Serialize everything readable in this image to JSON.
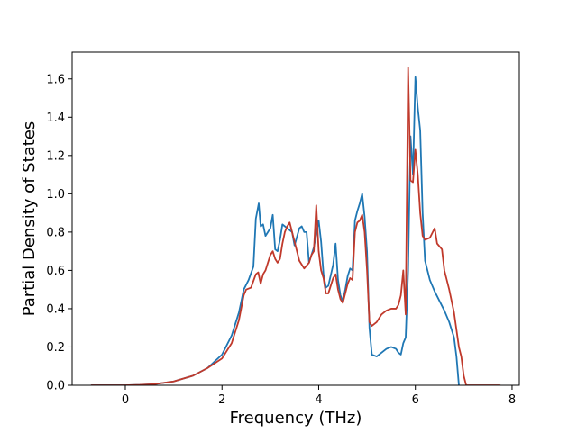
{
  "chart_data": {
    "type": "line",
    "title": "",
    "xlabel": "Frequency (THz)",
    "ylabel": "Partial Density of States",
    "xlim": [
      -1.1,
      8.15
    ],
    "ylim": [
      0.0,
      1.74
    ],
    "xticks": [
      0,
      2,
      4,
      6,
      8
    ],
    "xtick_labels": [
      "0",
      "2",
      "4",
      "6",
      "8"
    ],
    "yticks": [
      0.0,
      0.2,
      0.4,
      0.6,
      0.8,
      1.0,
      1.2,
      1.4,
      1.6
    ],
    "ytick_labels": [
      "0.0",
      "0.2",
      "0.4",
      "0.6",
      "0.8",
      "1.0",
      "1.2",
      "1.4",
      "1.6"
    ],
    "grid": false,
    "legend": "none",
    "series": [
      {
        "color": "#1f77b4",
        "points": [
          [
            -0.7,
            0.0
          ],
          [
            0.0,
            0.0
          ],
          [
            0.3,
            0.002
          ],
          [
            0.6,
            0.006
          ],
          [
            1.0,
            0.02
          ],
          [
            1.4,
            0.05
          ],
          [
            1.7,
            0.09
          ],
          [
            2.0,
            0.16
          ],
          [
            2.2,
            0.26
          ],
          [
            2.35,
            0.38
          ],
          [
            2.45,
            0.5
          ],
          [
            2.55,
            0.55
          ],
          [
            2.65,
            0.62
          ],
          [
            2.7,
            0.87
          ],
          [
            2.76,
            0.95
          ],
          [
            2.8,
            0.83
          ],
          [
            2.85,
            0.84
          ],
          [
            2.9,
            0.78
          ],
          [
            3.0,
            0.82
          ],
          [
            3.05,
            0.89
          ],
          [
            3.1,
            0.71
          ],
          [
            3.15,
            0.7
          ],
          [
            3.2,
            0.76
          ],
          [
            3.25,
            0.84
          ],
          [
            3.35,
            0.82
          ],
          [
            3.45,
            0.8
          ],
          [
            3.5,
            0.73
          ],
          [
            3.6,
            0.82
          ],
          [
            3.65,
            0.83
          ],
          [
            3.7,
            0.8
          ],
          [
            3.75,
            0.8
          ],
          [
            3.8,
            0.64
          ],
          [
            3.85,
            0.68
          ],
          [
            3.9,
            0.72
          ],
          [
            3.95,
            0.79
          ],
          [
            4.0,
            0.86
          ],
          [
            4.05,
            0.75
          ],
          [
            4.1,
            0.58
          ],
          [
            4.15,
            0.51
          ],
          [
            4.2,
            0.52
          ],
          [
            4.3,
            0.63
          ],
          [
            4.35,
            0.74
          ],
          [
            4.4,
            0.55
          ],
          [
            4.45,
            0.47
          ],
          [
            4.5,
            0.44
          ],
          [
            4.55,
            0.5
          ],
          [
            4.6,
            0.57
          ],
          [
            4.65,
            0.61
          ],
          [
            4.7,
            0.6
          ],
          [
            4.75,
            0.86
          ],
          [
            4.8,
            0.91
          ],
          [
            4.85,
            0.95
          ],
          [
            4.9,
            1.0
          ],
          [
            4.95,
            0.88
          ],
          [
            5.0,
            0.7
          ],
          [
            5.05,
            0.3
          ],
          [
            5.1,
            0.16
          ],
          [
            5.2,
            0.15
          ],
          [
            5.3,
            0.17
          ],
          [
            5.4,
            0.19
          ],
          [
            5.5,
            0.2
          ],
          [
            5.6,
            0.19
          ],
          [
            5.65,
            0.17
          ],
          [
            5.7,
            0.16
          ],
          [
            5.75,
            0.22
          ],
          [
            5.8,
            0.25
          ],
          [
            5.85,
            0.6
          ],
          [
            5.9,
            1.3
          ],
          [
            5.95,
            1.1
          ],
          [
            6.0,
            1.61
          ],
          [
            6.05,
            1.45
          ],
          [
            6.1,
            1.33
          ],
          [
            6.15,
            0.9
          ],
          [
            6.2,
            0.65
          ],
          [
            6.3,
            0.55
          ],
          [
            6.4,
            0.49
          ],
          [
            6.5,
            0.44
          ],
          [
            6.6,
            0.39
          ],
          [
            6.7,
            0.33
          ],
          [
            6.8,
            0.25
          ],
          [
            6.85,
            0.15
          ],
          [
            6.9,
            0.0
          ]
        ]
      },
      {
        "color": "#c0392b",
        "points": [
          [
            -0.7,
            0.0
          ],
          [
            0.0,
            0.0
          ],
          [
            0.3,
            0.002
          ],
          [
            0.6,
            0.006
          ],
          [
            1.0,
            0.02
          ],
          [
            1.4,
            0.05
          ],
          [
            1.7,
            0.09
          ],
          [
            2.0,
            0.14
          ],
          [
            2.2,
            0.22
          ],
          [
            2.35,
            0.34
          ],
          [
            2.45,
            0.47
          ],
          [
            2.5,
            0.5
          ],
          [
            2.6,
            0.51
          ],
          [
            2.7,
            0.58
          ],
          [
            2.75,
            0.59
          ],
          [
            2.8,
            0.53
          ],
          [
            2.85,
            0.58
          ],
          [
            2.9,
            0.6
          ],
          [
            3.0,
            0.68
          ],
          [
            3.05,
            0.7
          ],
          [
            3.1,
            0.66
          ],
          [
            3.15,
            0.64
          ],
          [
            3.2,
            0.66
          ],
          [
            3.25,
            0.74
          ],
          [
            3.3,
            0.8
          ],
          [
            3.35,
            0.83
          ],
          [
            3.4,
            0.85
          ],
          [
            3.5,
            0.75
          ],
          [
            3.6,
            0.65
          ],
          [
            3.7,
            0.61
          ],
          [
            3.8,
            0.64
          ],
          [
            3.85,
            0.68
          ],
          [
            3.9,
            0.7
          ],
          [
            3.95,
            0.94
          ],
          [
            4.0,
            0.7
          ],
          [
            4.05,
            0.6
          ],
          [
            4.1,
            0.56
          ],
          [
            4.15,
            0.48
          ],
          [
            4.2,
            0.48
          ],
          [
            4.3,
            0.56
          ],
          [
            4.35,
            0.58
          ],
          [
            4.4,
            0.5
          ],
          [
            4.45,
            0.45
          ],
          [
            4.5,
            0.43
          ],
          [
            4.6,
            0.53
          ],
          [
            4.65,
            0.56
          ],
          [
            4.7,
            0.55
          ],
          [
            4.75,
            0.8
          ],
          [
            4.8,
            0.85
          ],
          [
            4.85,
            0.86
          ],
          [
            4.9,
            0.89
          ],
          [
            4.95,
            0.8
          ],
          [
            5.0,
            0.6
          ],
          [
            5.05,
            0.33
          ],
          [
            5.1,
            0.31
          ],
          [
            5.2,
            0.33
          ],
          [
            5.3,
            0.37
          ],
          [
            5.4,
            0.39
          ],
          [
            5.5,
            0.4
          ],
          [
            5.6,
            0.4
          ],
          [
            5.65,
            0.42
          ],
          [
            5.7,
            0.47
          ],
          [
            5.75,
            0.6
          ],
          [
            5.8,
            0.37
          ],
          [
            5.85,
            1.66
          ],
          [
            5.9,
            1.07
          ],
          [
            5.95,
            1.06
          ],
          [
            6.0,
            1.23
          ],
          [
            6.05,
            1.1
          ],
          [
            6.1,
            0.9
          ],
          [
            6.15,
            0.78
          ],
          [
            6.2,
            0.76
          ],
          [
            6.3,
            0.77
          ],
          [
            6.4,
            0.82
          ],
          [
            6.45,
            0.74
          ],
          [
            6.55,
            0.71
          ],
          [
            6.6,
            0.6
          ],
          [
            6.7,
            0.5
          ],
          [
            6.8,
            0.38
          ],
          [
            6.85,
            0.29
          ],
          [
            6.9,
            0.2
          ],
          [
            6.95,
            0.15
          ],
          [
            7.0,
            0.05
          ],
          [
            7.05,
            0.0
          ],
          [
            7.75,
            0.0
          ]
        ]
      }
    ]
  }
}
